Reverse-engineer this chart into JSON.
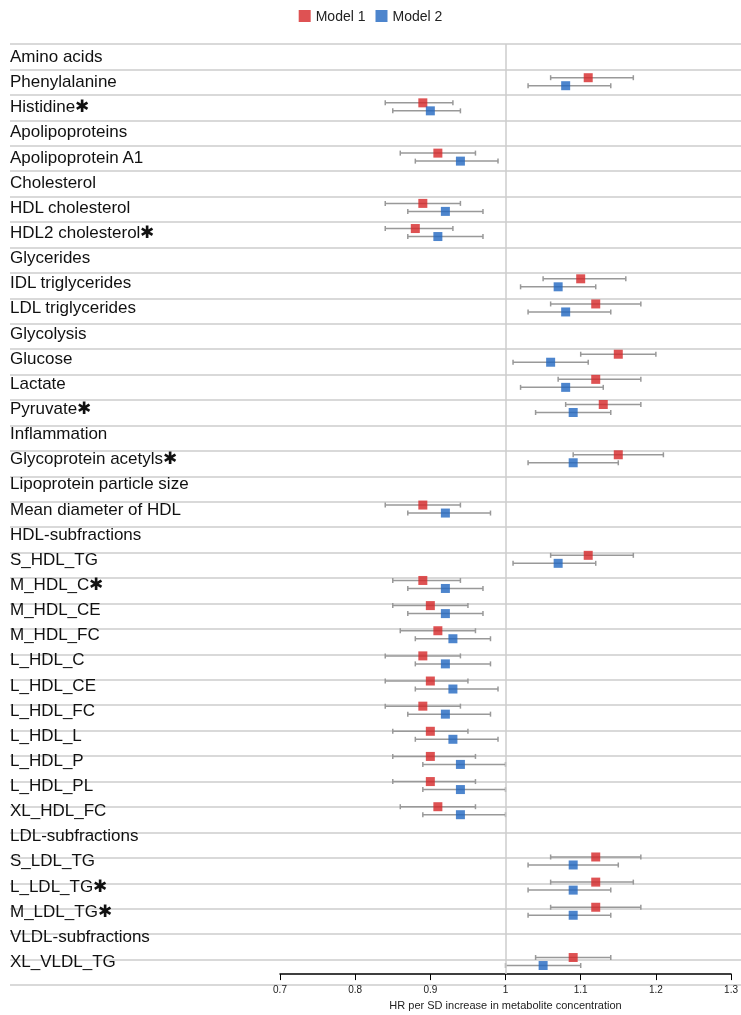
{
  "chart_data": {
    "type": "scatter",
    "orientation": "horizontal",
    "xlabel": "HR per SD increase in metabolite concentration",
    "categories": [
      "Amino acids",
      "Phenylalanine",
      "Histidine✱",
      "Apolipoproteins",
      "Apolipoprotein A1",
      "Cholesterol",
      "HDL cholesterol",
      "HDL2 cholesterol✱",
      "Glycerides",
      "IDL triglycerides",
      "LDL triglycerides",
      "Glycolysis",
      "Glucose",
      "Lactate",
      "Pyruvate✱",
      "Inflammation",
      "Glycoprotein acetyls✱",
      "Lipoprotein particle size",
      "Mean diameter of HDL",
      "HDL-subfractions",
      "S_HDL_TG",
      "M_HDL_C✱",
      "M_HDL_CE",
      "M_HDL_FC",
      "L_HDL_C",
      "L_HDL_CE",
      "L_HDL_FC",
      "L_HDL_L",
      "L_HDL_P",
      "L_HDL_PL",
      "XL_HDL_FC",
      "LDL-subfractions",
      "S_LDL_TG",
      "L_LDL_TG✱",
      "M_LDL_TG✱",
      "VLDL-subfractions",
      "XL_VLDL_TG"
    ],
    "series": [
      {
        "name": "Model 1",
        "color": "#d62728",
        "values": [
          null,
          1.11,
          0.89,
          null,
          0.91,
          null,
          0.89,
          0.88,
          null,
          1.1,
          1.12,
          null,
          1.15,
          1.12,
          1.13,
          null,
          1.15,
          null,
          0.89,
          null,
          1.11,
          0.89,
          0.9,
          0.91,
          0.89,
          0.9,
          0.89,
          0.9,
          0.9,
          0.9,
          0.91,
          null,
          1.12,
          1.12,
          1.12,
          null,
          1.09
        ],
        "errors": [
          null,
          [
            1.06,
            1.17
          ],
          [
            0.84,
            0.93
          ],
          null,
          [
            0.86,
            0.96
          ],
          null,
          [
            0.84,
            0.94
          ],
          [
            0.84,
            0.93
          ],
          null,
          [
            1.05,
            1.16
          ],
          [
            1.06,
            1.18
          ],
          null,
          [
            1.1,
            1.2
          ],
          [
            1.07,
            1.18
          ],
          [
            1.08,
            1.18
          ],
          null,
          [
            1.09,
            1.21
          ],
          null,
          [
            0.84,
            0.94
          ],
          null,
          [
            1.06,
            1.17
          ],
          [
            0.85,
            0.94
          ],
          [
            0.85,
            0.95
          ],
          [
            0.86,
            0.96
          ],
          [
            0.84,
            0.94
          ],
          [
            0.84,
            0.95
          ],
          [
            0.84,
            0.94
          ],
          [
            0.85,
            0.95
          ],
          [
            0.85,
            0.96
          ],
          [
            0.85,
            0.96
          ],
          [
            0.86,
            0.96
          ],
          null,
          [
            1.06,
            1.18
          ],
          [
            1.06,
            1.17
          ],
          [
            1.06,
            1.18
          ],
          null,
          [
            1.04,
            1.14
          ]
        ]
      },
      {
        "name": "Model 2",
        "color": "#2166c0",
        "values": [
          null,
          1.08,
          0.9,
          null,
          0.94,
          null,
          0.92,
          0.91,
          null,
          1.07,
          1.08,
          null,
          1.06,
          1.08,
          1.09,
          null,
          1.09,
          null,
          0.92,
          null,
          1.07,
          0.92,
          0.92,
          0.93,
          0.92,
          0.93,
          0.92,
          0.93,
          0.94,
          0.94,
          0.94,
          null,
          1.09,
          1.09,
          1.09,
          null,
          1.05
        ],
        "errors": [
          null,
          [
            1.03,
            1.14
          ],
          [
            0.85,
            0.94
          ],
          null,
          [
            0.88,
            0.99
          ],
          null,
          [
            0.87,
            0.97
          ],
          [
            0.87,
            0.97
          ],
          null,
          [
            1.02,
            1.12
          ],
          [
            1.03,
            1.14
          ],
          null,
          [
            1.01,
            1.11
          ],
          [
            1.02,
            1.13
          ],
          [
            1.04,
            1.14
          ],
          null,
          [
            1.03,
            1.15
          ],
          null,
          [
            0.87,
            0.98
          ],
          null,
          [
            1.01,
            1.12
          ],
          [
            0.87,
            0.97
          ],
          [
            0.87,
            0.97
          ],
          [
            0.88,
            0.98
          ],
          [
            0.88,
            0.98
          ],
          [
            0.88,
            0.99
          ],
          [
            0.87,
            0.98
          ],
          [
            0.88,
            0.99
          ],
          [
            0.89,
            1.0
          ],
          [
            0.89,
            1.0
          ],
          [
            0.89,
            1.0
          ],
          null,
          [
            1.03,
            1.15
          ],
          [
            1.03,
            1.14
          ],
          [
            1.03,
            1.14
          ],
          null,
          [
            1.0,
            1.1
          ]
        ]
      }
    ],
    "xlim": [
      0.7,
      1.3
    ],
    "xticks": [
      0.7,
      0.8,
      0.9,
      1,
      1.1,
      1.2,
      1.3
    ],
    "ref_lines": [
      {
        "axis": "x",
        "value": 1,
        "color": "#cccccc"
      }
    ],
    "grid": "y",
    "legend": "top",
    "marker": "square"
  }
}
